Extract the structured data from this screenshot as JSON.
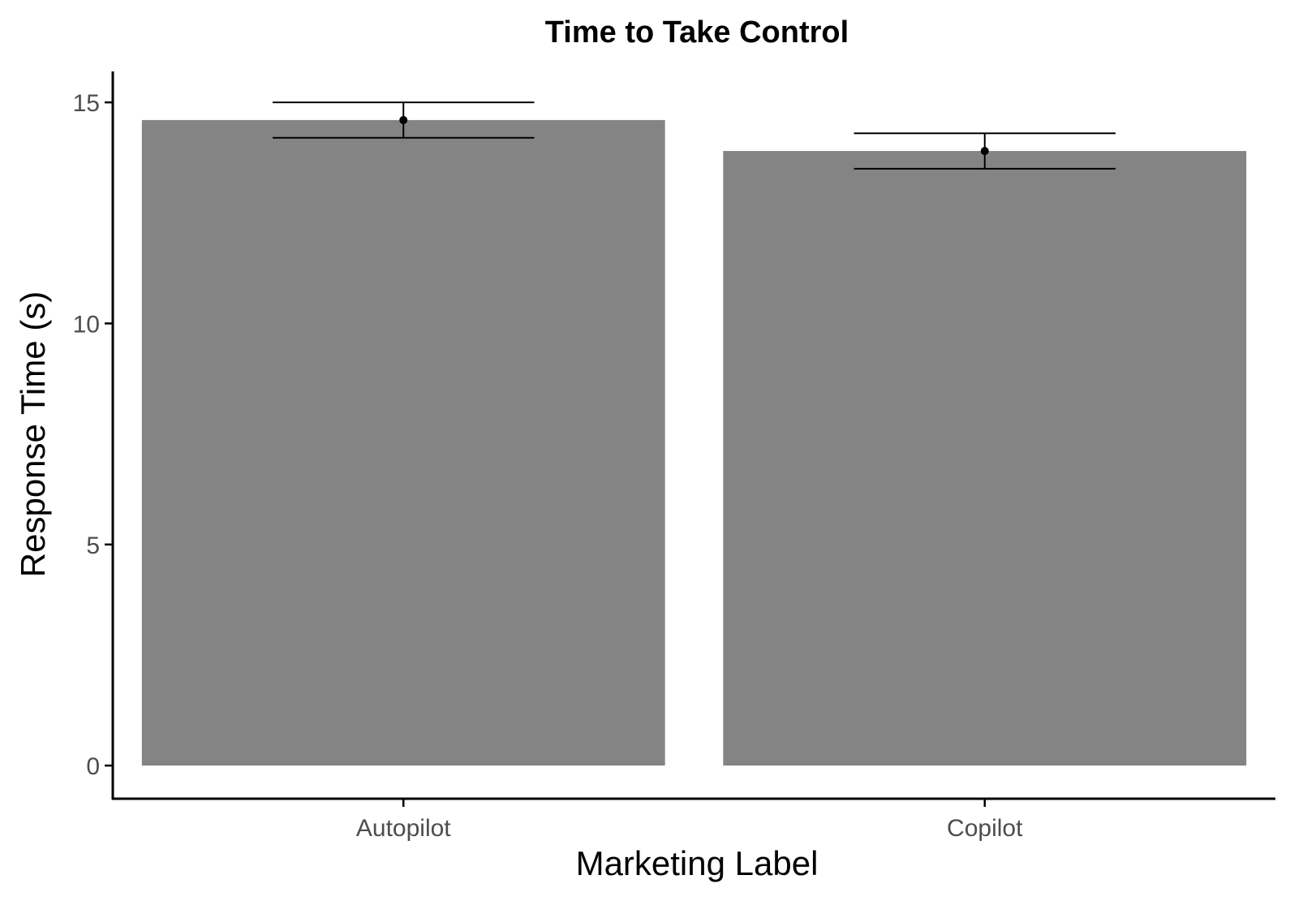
{
  "chart_data": {
    "type": "bar",
    "title": "Time to Take Control",
    "xlabel": "Marketing Label",
    "ylabel": "Response Time (s)",
    "categories": [
      "Autopilot",
      "Copilot"
    ],
    "values": [
      14.6,
      13.9
    ],
    "error_low": [
      14.2,
      13.5
    ],
    "error_high": [
      15.0,
      14.3
    ],
    "ylim": [
      -0.75,
      15.7
    ],
    "yticks": [
      0,
      5,
      10,
      15
    ],
    "ytick_labels": [
      "0",
      "5",
      "10",
      "15"
    ],
    "grid": false,
    "legend": "none",
    "colors": {
      "bar": "#848484",
      "errorbar": "#000000",
      "axis": "#000000",
      "tick_text": "#4d4d4d"
    }
  }
}
